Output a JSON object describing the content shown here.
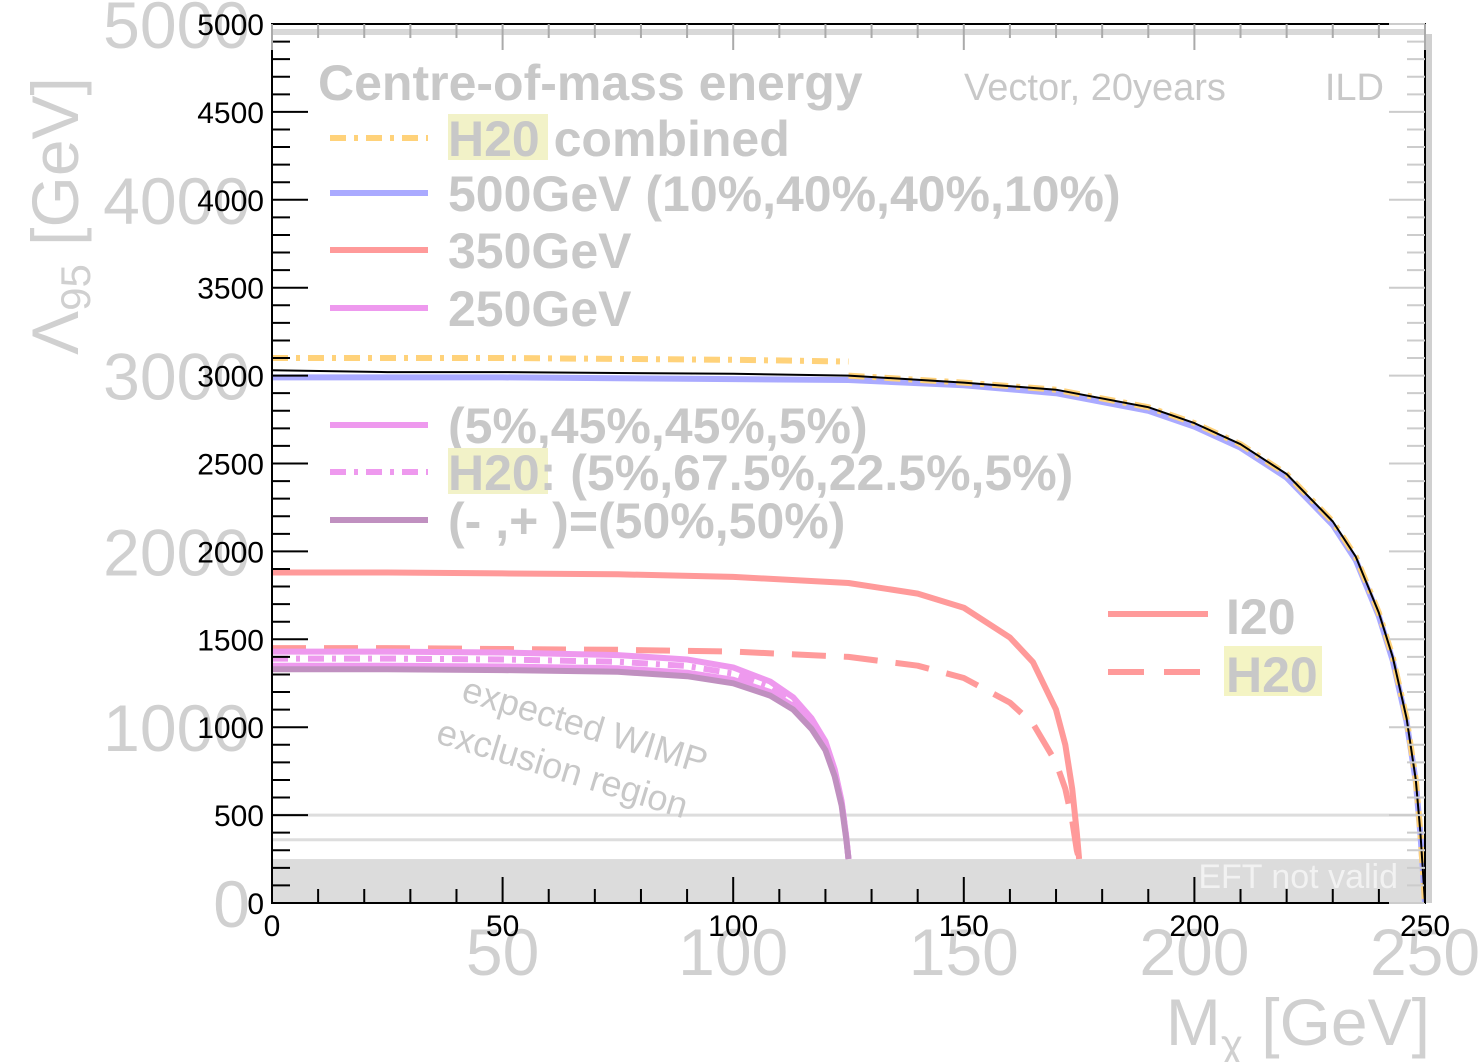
{
  "chart_data": {
    "type": "line",
    "xlabel": "Mχ [GeV]",
    "xlabel_main": "M",
    "xlabel_sub": "χ",
    "xlabel_unit": " [GeV]",
    "ylabel": "Λ95 [GeV]",
    "ylabel_main": "Λ",
    "ylabel_sub": "95",
    "ylabel_unit": " [GeV]",
    "xlim": [
      0,
      250
    ],
    "ylim": [
      0,
      5000
    ],
    "x_ticks": [
      "0",
      "50",
      "100",
      "150",
      "200",
      "250"
    ],
    "y_ticks": [
      "0",
      "500",
      "1000",
      "1500",
      "2000",
      "2500",
      "3000",
      "3500",
      "4000",
      "4500",
      "5000"
    ],
    "x_ticks_ghost": [
      "50",
      "100",
      "150",
      "200",
      "250"
    ],
    "y_ticks_ghost": [
      "0",
      "1000",
      "2000",
      "3000",
      "4000",
      "5000"
    ],
    "legend_title": "Centre-of-mass energy",
    "header_note": "Vector, 20years",
    "detector_label": "ILD",
    "legend": [
      {
        "label_hl": "H20",
        "label": " combined",
        "color": "#ffd27a",
        "style": "dashdot"
      },
      {
        "label": "500GeV (10%,40%,40%,10%)",
        "color": "#aaaaff",
        "style": "solid"
      },
      {
        "label": "350GeV",
        "color": "#ff9a9a",
        "style": "solid"
      },
      {
        "label": "250GeV",
        "color": "#ee99ee",
        "style": "solid"
      },
      {
        "label": "(5%,45%,45%,5%)",
        "color": "#ee99ee",
        "style": "solid"
      },
      {
        "label_hl": "H20",
        "label": ": (5%,67.5%,22.5%,5%)",
        "color": "#ee99ee",
        "style": "dashdot"
      },
      {
        "label": "(- ,+ )=(50%,50%)",
        "color": "#c090c0",
        "style": "solid"
      }
    ],
    "legend2": [
      {
        "label": "I20",
        "color": "#ff9a9a",
        "style": "solid"
      },
      {
        "label": "H20",
        "color": "#ff9a9a",
        "style": "dashed",
        "highlight": true
      }
    ],
    "annotation_lines": [
      "expected WIMP",
      "exclusion region"
    ],
    "eft_label": "EFT not valid",
    "eft_band_upper": 250,
    "reference_lines": [
      500,
      360
    ],
    "series": [
      {
        "color": "#000000",
        "style": "solid",
        "x": [
          0,
          25,
          50,
          75,
          100,
          125,
          150,
          170,
          190,
          200,
          210,
          220,
          230,
          235,
          240,
          243,
          246,
          248,
          249,
          249.5,
          250
        ],
        "y": [
          3030,
          3020,
          3020,
          3015,
          3010,
          3000,
          2960,
          2920,
          2820,
          2730,
          2610,
          2440,
          2170,
          1970,
          1650,
          1400,
          1050,
          700,
          400,
          200,
          0
        ]
      },
      {
        "color": "#aaaaff",
        "style": "solid",
        "x": [
          0,
          25,
          50,
          75,
          100,
          125,
          150,
          170,
          190,
          200,
          210,
          220,
          230,
          235,
          240,
          243,
          246,
          248,
          249,
          249.5,
          250
        ],
        "y": [
          2990,
          2990,
          2990,
          2985,
          2980,
          2975,
          2945,
          2900,
          2800,
          2710,
          2590,
          2420,
          2150,
          1950,
          1630,
          1380,
          1030,
          690,
          390,
          200,
          0
        ]
      },
      {
        "color": "#ffd27a",
        "style": "dashdot",
        "x": [
          0,
          25,
          50,
          75,
          100,
          125
        ],
        "y": [
          3100,
          3100,
          3100,
          3095,
          3090,
          3080
        ]
      },
      {
        "color": "#ffd27a",
        "style": "dashdot",
        "x": [
          125,
          150,
          170,
          190,
          200,
          210,
          220,
          230,
          235,
          240,
          243,
          246,
          248,
          249,
          249.5,
          250
        ],
        "y": [
          3000,
          2960,
          2920,
          2820,
          2730,
          2610,
          2440,
          2170,
          1970,
          1650,
          1400,
          1050,
          700,
          400,
          200,
          0
        ]
      },
      {
        "color": "#ff9a9a",
        "style": "solid",
        "x": [
          0,
          25,
          50,
          75,
          100,
          125,
          140,
          150,
          160,
          165,
          170,
          172,
          173.5,
          174.5,
          175
        ],
        "y": [
          1880,
          1880,
          1875,
          1870,
          1855,
          1820,
          1760,
          1680,
          1510,
          1370,
          1100,
          900,
          650,
          400,
          250
        ]
      },
      {
        "color": "#ff9a9a",
        "style": "dashed",
        "x": [
          0,
          25,
          50,
          75,
          100,
          125,
          140,
          150,
          160,
          165,
          170,
          172,
          173.5,
          174.5,
          175
        ],
        "y": [
          1450,
          1450,
          1445,
          1440,
          1430,
          1400,
          1350,
          1280,
          1140,
          1020,
          800,
          650,
          470,
          300,
          250
        ]
      },
      {
        "color": "#ee99ee",
        "style": "solid",
        "x": [
          0,
          25,
          50,
          75,
          90,
          100,
          108,
          113,
          117,
          120,
          122,
          123.5,
          124.5,
          125
        ],
        "y": [
          1430,
          1430,
          1425,
          1410,
          1385,
          1340,
          1260,
          1170,
          1050,
          920,
          760,
          580,
          380,
          250
        ]
      },
      {
        "color": "#ee99ee",
        "style": "solid",
        "x": [
          0,
          25,
          50,
          75,
          90,
          100,
          108,
          113,
          117,
          120,
          122,
          123.5,
          124.5,
          125
        ],
        "y": [
          1350,
          1350,
          1345,
          1335,
          1310,
          1270,
          1200,
          1120,
          1010,
          890,
          740,
          570,
          375,
          250
        ]
      },
      {
        "color": "#ee99ee",
        "style": "dashdot",
        "x": [
          0,
          25,
          50,
          75,
          90,
          100,
          108,
          113,
          117,
          120,
          122,
          123.5,
          124.5,
          125
        ],
        "y": [
          1390,
          1390,
          1385,
          1372,
          1348,
          1305,
          1230,
          1145,
          1030,
          905,
          750,
          575,
          378,
          250
        ]
      },
      {
        "color": "#c090c0",
        "style": "solid",
        "x": [
          0,
          25,
          50,
          75,
          90,
          100,
          108,
          113,
          117,
          120,
          122,
          123.5,
          124.5,
          125
        ],
        "y": [
          1330,
          1330,
          1325,
          1315,
          1290,
          1250,
          1180,
          1100,
          990,
          870,
          720,
          555,
          365,
          250
        ]
      }
    ]
  }
}
